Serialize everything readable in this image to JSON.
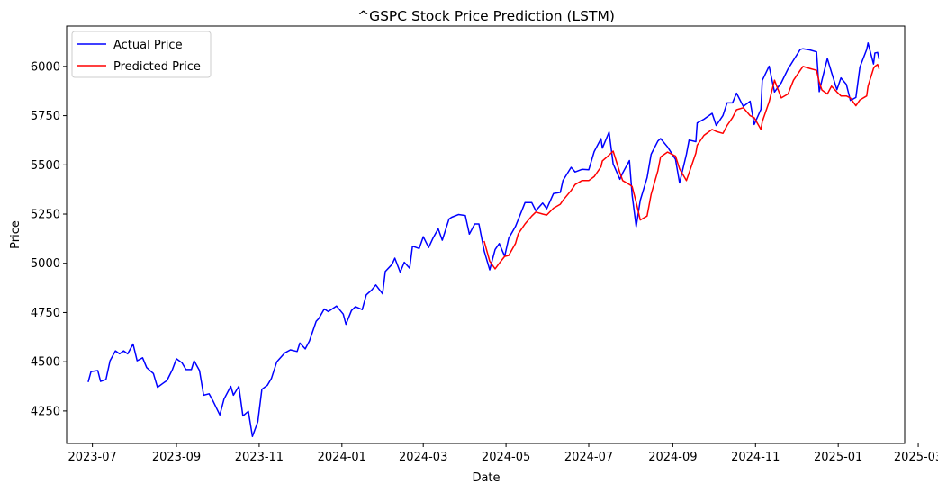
{
  "chart_data": {
    "type": "line",
    "title": "^GSPC Stock Price Prediction (LSTM)",
    "xlabel": "Date",
    "ylabel": "Price",
    "grid": false,
    "legend_position": "top-left",
    "xlim": [
      "2023-06-12",
      "2025-02-19"
    ],
    "ylim": [
      4085,
      6205
    ],
    "x_ticks": [
      {
        "date": "2023-07-01",
        "label": "2023-07"
      },
      {
        "date": "2023-09-01",
        "label": "2023-09"
      },
      {
        "date": "2023-11-01",
        "label": "2023-11"
      },
      {
        "date": "2024-01-01",
        "label": "2024-01"
      },
      {
        "date": "2024-03-01",
        "label": "2024-03"
      },
      {
        "date": "2024-05-01",
        "label": "2024-05"
      },
      {
        "date": "2024-07-01",
        "label": "2024-07"
      },
      {
        "date": "2024-09-01",
        "label": "2024-09"
      },
      {
        "date": "2024-11-01",
        "label": "2024-11"
      },
      {
        "date": "2025-01-01",
        "label": "2025-01"
      },
      {
        "date": "2025-03-01",
        "label": "2025-03"
      }
    ],
    "y_ticks": [
      4250,
      4500,
      4750,
      5000,
      5250,
      5500,
      5750,
      6000
    ],
    "series": [
      {
        "name": "Actual Price",
        "color": "#0000ff",
        "points": [
          [
            "2023-06-28",
            4400
          ],
          [
            "2023-06-30",
            4450
          ],
          [
            "2023-07-05",
            4455
          ],
          [
            "2023-07-07",
            4400
          ],
          [
            "2023-07-11",
            4410
          ],
          [
            "2023-07-14",
            4505
          ],
          [
            "2023-07-18",
            4555
          ],
          [
            "2023-07-21",
            4540
          ],
          [
            "2023-07-24",
            4555
          ],
          [
            "2023-07-27",
            4540
          ],
          [
            "2023-07-31",
            4590
          ],
          [
            "2023-08-03",
            4505
          ],
          [
            "2023-08-07",
            4520
          ],
          [
            "2023-08-10",
            4470
          ],
          [
            "2023-08-15",
            4440
          ],
          [
            "2023-08-18",
            4370
          ],
          [
            "2023-08-22",
            4390
          ],
          [
            "2023-08-25",
            4405
          ],
          [
            "2023-08-29",
            4460
          ],
          [
            "2023-09-01",
            4515
          ],
          [
            "2023-09-05",
            4495
          ],
          [
            "2023-09-08",
            4460
          ],
          [
            "2023-09-12",
            4460
          ],
          [
            "2023-09-14",
            4505
          ],
          [
            "2023-09-18",
            4455
          ],
          [
            "2023-09-21",
            4330
          ],
          [
            "2023-09-25",
            4337
          ],
          [
            "2023-09-28",
            4300
          ],
          [
            "2023-10-03",
            4230
          ],
          [
            "2023-10-06",
            4310
          ],
          [
            "2023-10-11",
            4375
          ],
          [
            "2023-10-13",
            4330
          ],
          [
            "2023-10-17",
            4375
          ],
          [
            "2023-10-20",
            4225
          ],
          [
            "2023-10-24",
            4248
          ],
          [
            "2023-10-27",
            4120
          ],
          [
            "2023-10-31",
            4195
          ],
          [
            "2023-11-03",
            4360
          ],
          [
            "2023-11-07",
            4380
          ],
          [
            "2023-11-10",
            4415
          ],
          [
            "2023-11-14",
            4500
          ],
          [
            "2023-11-20",
            4545
          ],
          [
            "2023-11-24",
            4560
          ],
          [
            "2023-11-29",
            4552
          ],
          [
            "2023-12-01",
            4595
          ],
          [
            "2023-12-05",
            4565
          ],
          [
            "2023-12-08",
            4605
          ],
          [
            "2023-12-13",
            4705
          ],
          [
            "2023-12-15",
            4720
          ],
          [
            "2023-12-19",
            4768
          ],
          [
            "2023-12-22",
            4755
          ],
          [
            "2023-12-28",
            4783
          ],
          [
            "2024-01-02",
            4742
          ],
          [
            "2024-01-04",
            4690
          ],
          [
            "2024-01-08",
            4760
          ],
          [
            "2024-01-11",
            4780
          ],
          [
            "2024-01-16",
            4765
          ],
          [
            "2024-01-19",
            4840
          ],
          [
            "2024-01-23",
            4865
          ],
          [
            "2024-01-26",
            4890
          ],
          [
            "2024-01-31",
            4845
          ],
          [
            "2024-02-02",
            4958
          ],
          [
            "2024-02-07",
            4995
          ],
          [
            "2024-02-09",
            5026
          ],
          [
            "2024-02-13",
            4955
          ],
          [
            "2024-02-16",
            5005
          ],
          [
            "2024-02-20",
            4975
          ],
          [
            "2024-02-22",
            5087
          ],
          [
            "2024-02-27",
            5075
          ],
          [
            "2024-03-01",
            5135
          ],
          [
            "2024-03-05",
            5080
          ],
          [
            "2024-03-08",
            5125
          ],
          [
            "2024-03-12",
            5175
          ],
          [
            "2024-03-15",
            5117
          ],
          [
            "2024-03-20",
            5225
          ],
          [
            "2024-03-22",
            5234
          ],
          [
            "2024-03-27",
            5248
          ],
          [
            "2024-04-01",
            5243
          ],
          [
            "2024-04-04",
            5148
          ],
          [
            "2024-04-08",
            5200
          ],
          [
            "2024-04-11",
            5200
          ],
          [
            "2024-04-15",
            5060
          ],
          [
            "2024-04-19",
            4967
          ],
          [
            "2024-04-23",
            5070
          ],
          [
            "2024-04-26",
            5100
          ],
          [
            "2024-04-30",
            5036
          ],
          [
            "2024-05-03",
            5127
          ],
          [
            "2024-05-08",
            5187
          ],
          [
            "2024-05-10",
            5222
          ],
          [
            "2024-05-15",
            5308
          ],
          [
            "2024-05-20",
            5308
          ],
          [
            "2024-05-23",
            5267
          ],
          [
            "2024-05-28",
            5306
          ],
          [
            "2024-05-31",
            5277
          ],
          [
            "2024-06-05",
            5354
          ],
          [
            "2024-06-10",
            5360
          ],
          [
            "2024-06-12",
            5421
          ],
          [
            "2024-06-18",
            5487
          ],
          [
            "2024-06-21",
            5464
          ],
          [
            "2024-06-26",
            5477
          ],
          [
            "2024-07-01",
            5475
          ],
          [
            "2024-07-05",
            5567
          ],
          [
            "2024-07-10",
            5633
          ],
          [
            "2024-07-11",
            5585
          ],
          [
            "2024-07-16",
            5667
          ],
          [
            "2024-07-19",
            5505
          ],
          [
            "2024-07-24",
            5427
          ],
          [
            "2024-07-26",
            5459
          ],
          [
            "2024-07-31",
            5522
          ],
          [
            "2024-08-02",
            5346
          ],
          [
            "2024-08-05",
            5186
          ],
          [
            "2024-08-08",
            5319
          ],
          [
            "2024-08-13",
            5434
          ],
          [
            "2024-08-16",
            5554
          ],
          [
            "2024-08-21",
            5621
          ],
          [
            "2024-08-23",
            5634
          ],
          [
            "2024-08-28",
            5592
          ],
          [
            "2024-09-03",
            5528
          ],
          [
            "2024-09-06",
            5408
          ],
          [
            "2024-09-11",
            5554
          ],
          [
            "2024-09-13",
            5626
          ],
          [
            "2024-09-18",
            5618
          ],
          [
            "2024-09-19",
            5713
          ],
          [
            "2024-09-24",
            5732
          ],
          [
            "2024-09-30",
            5762
          ],
          [
            "2024-10-03",
            5700
          ],
          [
            "2024-10-08",
            5751
          ],
          [
            "2024-10-11",
            5815
          ],
          [
            "2024-10-15",
            5815
          ],
          [
            "2024-10-18",
            5864
          ],
          [
            "2024-10-23",
            5797
          ],
          [
            "2024-10-28",
            5823
          ],
          [
            "2024-10-31",
            5705
          ],
          [
            "2024-11-05",
            5782
          ],
          [
            "2024-11-06",
            5929
          ],
          [
            "2024-11-11",
            6001
          ],
          [
            "2024-11-15",
            5870
          ],
          [
            "2024-11-20",
            5917
          ],
          [
            "2024-11-25",
            5987
          ],
          [
            "2024-11-29",
            6032
          ],
          [
            "2024-12-04",
            6086
          ],
          [
            "2024-12-06",
            6090
          ],
          [
            "2024-12-11",
            6084
          ],
          [
            "2024-12-16",
            6074
          ],
          [
            "2024-12-18",
            5872
          ],
          [
            "2024-12-20",
            5930
          ],
          [
            "2024-12-24",
            6040
          ],
          [
            "2024-12-27",
            5970
          ],
          [
            "2024-12-31",
            5882
          ],
          [
            "2025-01-03",
            5942
          ],
          [
            "2025-01-07",
            5909
          ],
          [
            "2025-01-10",
            5827
          ],
          [
            "2025-01-14",
            5842
          ],
          [
            "2025-01-17",
            5997
          ],
          [
            "2025-01-22",
            6086
          ],
          [
            "2025-01-23",
            6119
          ],
          [
            "2025-01-27",
            6012
          ],
          [
            "2025-01-28",
            6068
          ],
          [
            "2025-01-30",
            6071
          ],
          [
            "2025-01-31",
            6040
          ]
        ]
      },
      {
        "name": "Predicted Price",
        "color": "#ff0000",
        "points": [
          [
            "2024-04-15",
            5110
          ],
          [
            "2024-04-19",
            5010
          ],
          [
            "2024-04-23",
            4972
          ],
          [
            "2024-04-26",
            5000
          ],
          [
            "2024-04-30",
            5035
          ],
          [
            "2024-05-03",
            5040
          ],
          [
            "2024-05-08",
            5100
          ],
          [
            "2024-05-10",
            5150
          ],
          [
            "2024-05-15",
            5200
          ],
          [
            "2024-05-20",
            5240
          ],
          [
            "2024-05-23",
            5260
          ],
          [
            "2024-05-28",
            5250
          ],
          [
            "2024-05-31",
            5245
          ],
          [
            "2024-06-05",
            5280
          ],
          [
            "2024-06-10",
            5300
          ],
          [
            "2024-06-12",
            5320
          ],
          [
            "2024-06-18",
            5370
          ],
          [
            "2024-06-21",
            5400
          ],
          [
            "2024-06-26",
            5420
          ],
          [
            "2024-07-01",
            5420
          ],
          [
            "2024-07-05",
            5440
          ],
          [
            "2024-07-10",
            5490
          ],
          [
            "2024-07-11",
            5520
          ],
          [
            "2024-07-16",
            5550
          ],
          [
            "2024-07-19",
            5570
          ],
          [
            "2024-07-24",
            5460
          ],
          [
            "2024-07-26",
            5420
          ],
          [
            "2024-07-31",
            5400
          ],
          [
            "2024-08-02",
            5390
          ],
          [
            "2024-08-05",
            5310
          ],
          [
            "2024-08-08",
            5220
          ],
          [
            "2024-08-13",
            5240
          ],
          [
            "2024-08-16",
            5350
          ],
          [
            "2024-08-21",
            5470
          ],
          [
            "2024-08-23",
            5540
          ],
          [
            "2024-08-28",
            5565
          ],
          [
            "2024-09-03",
            5545
          ],
          [
            "2024-09-06",
            5480
          ],
          [
            "2024-09-11",
            5420
          ],
          [
            "2024-09-13",
            5460
          ],
          [
            "2024-09-18",
            5560
          ],
          [
            "2024-09-19",
            5600
          ],
          [
            "2024-09-24",
            5650
          ],
          [
            "2024-09-30",
            5680
          ],
          [
            "2024-10-03",
            5670
          ],
          [
            "2024-10-08",
            5660
          ],
          [
            "2024-10-11",
            5700
          ],
          [
            "2024-10-15",
            5740
          ],
          [
            "2024-10-18",
            5780
          ],
          [
            "2024-10-23",
            5790
          ],
          [
            "2024-10-28",
            5750
          ],
          [
            "2024-10-31",
            5740
          ],
          [
            "2024-11-05",
            5680
          ],
          [
            "2024-11-06",
            5720
          ],
          [
            "2024-11-11",
            5820
          ],
          [
            "2024-11-15",
            5930
          ],
          [
            "2024-11-20",
            5840
          ],
          [
            "2024-11-25",
            5860
          ],
          [
            "2024-11-29",
            5930
          ],
          [
            "2024-12-04",
            5980
          ],
          [
            "2024-12-06",
            6000
          ],
          [
            "2024-12-11",
            5990
          ],
          [
            "2024-12-16",
            5980
          ],
          [
            "2024-12-18",
            5920
          ],
          [
            "2024-12-20",
            5880
          ],
          [
            "2024-12-24",
            5860
          ],
          [
            "2024-12-27",
            5900
          ],
          [
            "2024-12-31",
            5870
          ],
          [
            "2025-01-03",
            5850
          ],
          [
            "2025-01-07",
            5850
          ],
          [
            "2025-01-10",
            5840
          ],
          [
            "2025-01-14",
            5800
          ],
          [
            "2025-01-17",
            5830
          ],
          [
            "2025-01-22",
            5850
          ],
          [
            "2025-01-23",
            5900
          ],
          [
            "2025-01-27",
            5990
          ],
          [
            "2025-01-28",
            6000
          ],
          [
            "2025-01-30",
            6010
          ],
          [
            "2025-01-31",
            5990
          ]
        ]
      }
    ]
  }
}
